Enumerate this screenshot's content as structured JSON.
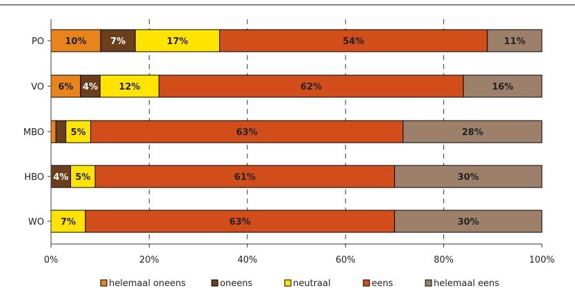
{
  "chart_data": {
    "type": "bar",
    "orientation": "horizontal",
    "stacked": "percent",
    "categories": [
      "PO",
      "VO",
      "MBO",
      "HBO",
      "WO"
    ],
    "series": [
      {
        "name": "helemaal oneens",
        "color": "#E8841A",
        "values": [
          10,
          6,
          1,
          0,
          0
        ],
        "labels": [
          "10%",
          "6%",
          "",
          "",
          ""
        ]
      },
      {
        "name": "oneens",
        "color": "#6B3E1C",
        "values": [
          7,
          4,
          2,
          4,
          0
        ],
        "labels": [
          "7%",
          "4%",
          "",
          "4%",
          ""
        ]
      },
      {
        "name": "neutraal",
        "color": "#FFE400",
        "values": [
          17,
          12,
          5,
          5,
          7
        ],
        "labels": [
          "17%",
          "12%",
          "5%",
          "5%",
          "7%"
        ]
      },
      {
        "name": "eens",
        "color": "#D14E1A",
        "values": [
          54,
          62,
          63,
          61,
          63
        ],
        "labels": [
          "54%",
          "62%",
          "63%",
          "61%",
          "63%"
        ]
      },
      {
        "name": "helemaal eens",
        "color": "#9C806A",
        "values": [
          11,
          16,
          28,
          30,
          30
        ],
        "labels": [
          "11%",
          "16%",
          "28%",
          "30%",
          "30%"
        ]
      }
    ],
    "xticks": [
      "0%",
      "20%",
      "40%",
      "60%",
      "80%",
      "100%"
    ],
    "xlim": [
      0,
      100
    ],
    "grid": "vertical dashed",
    "legend_position": "bottom"
  }
}
